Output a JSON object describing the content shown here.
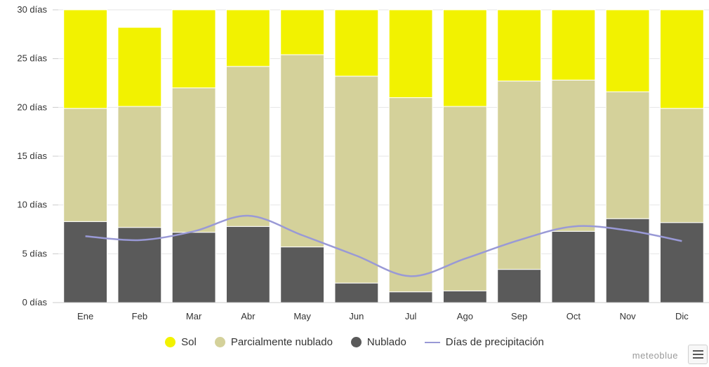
{
  "chart_data": {
    "type": "bar",
    "stacked": true,
    "categories": [
      "Ene",
      "Feb",
      "Mar",
      "Abr",
      "May",
      "Jun",
      "Jul",
      "Ago",
      "Sep",
      "Oct",
      "Nov",
      "Dic"
    ],
    "series": [
      {
        "name": "Nublado",
        "color": "#5a5a5a",
        "values": [
          8.3,
          7.7,
          7.2,
          7.8,
          5.7,
          2.0,
          1.1,
          1.2,
          3.4,
          7.3,
          8.6,
          8.2
        ]
      },
      {
        "name": "Parcialmente nublado",
        "color": "#d4d19a",
        "values": [
          11.6,
          12.4,
          14.8,
          16.4,
          19.7,
          21.2,
          19.9,
          18.9,
          19.3,
          15.5,
          13.0,
          11.7
        ]
      },
      {
        "name": "Sol",
        "color": "#f2f200",
        "values": [
          10.1,
          8.1,
          8.0,
          5.8,
          4.6,
          6.8,
          9.0,
          9.9,
          7.3,
          7.2,
          8.4,
          10.1
        ]
      }
    ],
    "line_series": {
      "name": "Días de precipitación",
      "color": "#9999d6",
      "values": [
        6.8,
        6.4,
        7.3,
        8.9,
        6.9,
        4.8,
        2.7,
        4.5,
        6.4,
        7.8,
        7.4,
        6.3
      ]
    },
    "ylim": [
      0,
      30
    ],
    "yticks": [
      0,
      5,
      10,
      15,
      20,
      25,
      30
    ],
    "ytick_labels": [
      "0 días",
      "5 días",
      "10 días",
      "15 días",
      "20 días",
      "25 días",
      "30 días"
    ],
    "xlabel": "",
    "ylabel": "",
    "grid": true,
    "legend": "bottom"
  },
  "legend": {
    "items": [
      {
        "label": "Sol",
        "color": "#f2f200"
      },
      {
        "label": "Parcialmente nublado",
        "color": "#d4d19a"
      },
      {
        "label": "Nublado",
        "color": "#5a5a5a"
      },
      {
        "label": "Días de precipitación",
        "color": "#9999d6"
      }
    ]
  },
  "brand": {
    "text": "meteoblue"
  }
}
